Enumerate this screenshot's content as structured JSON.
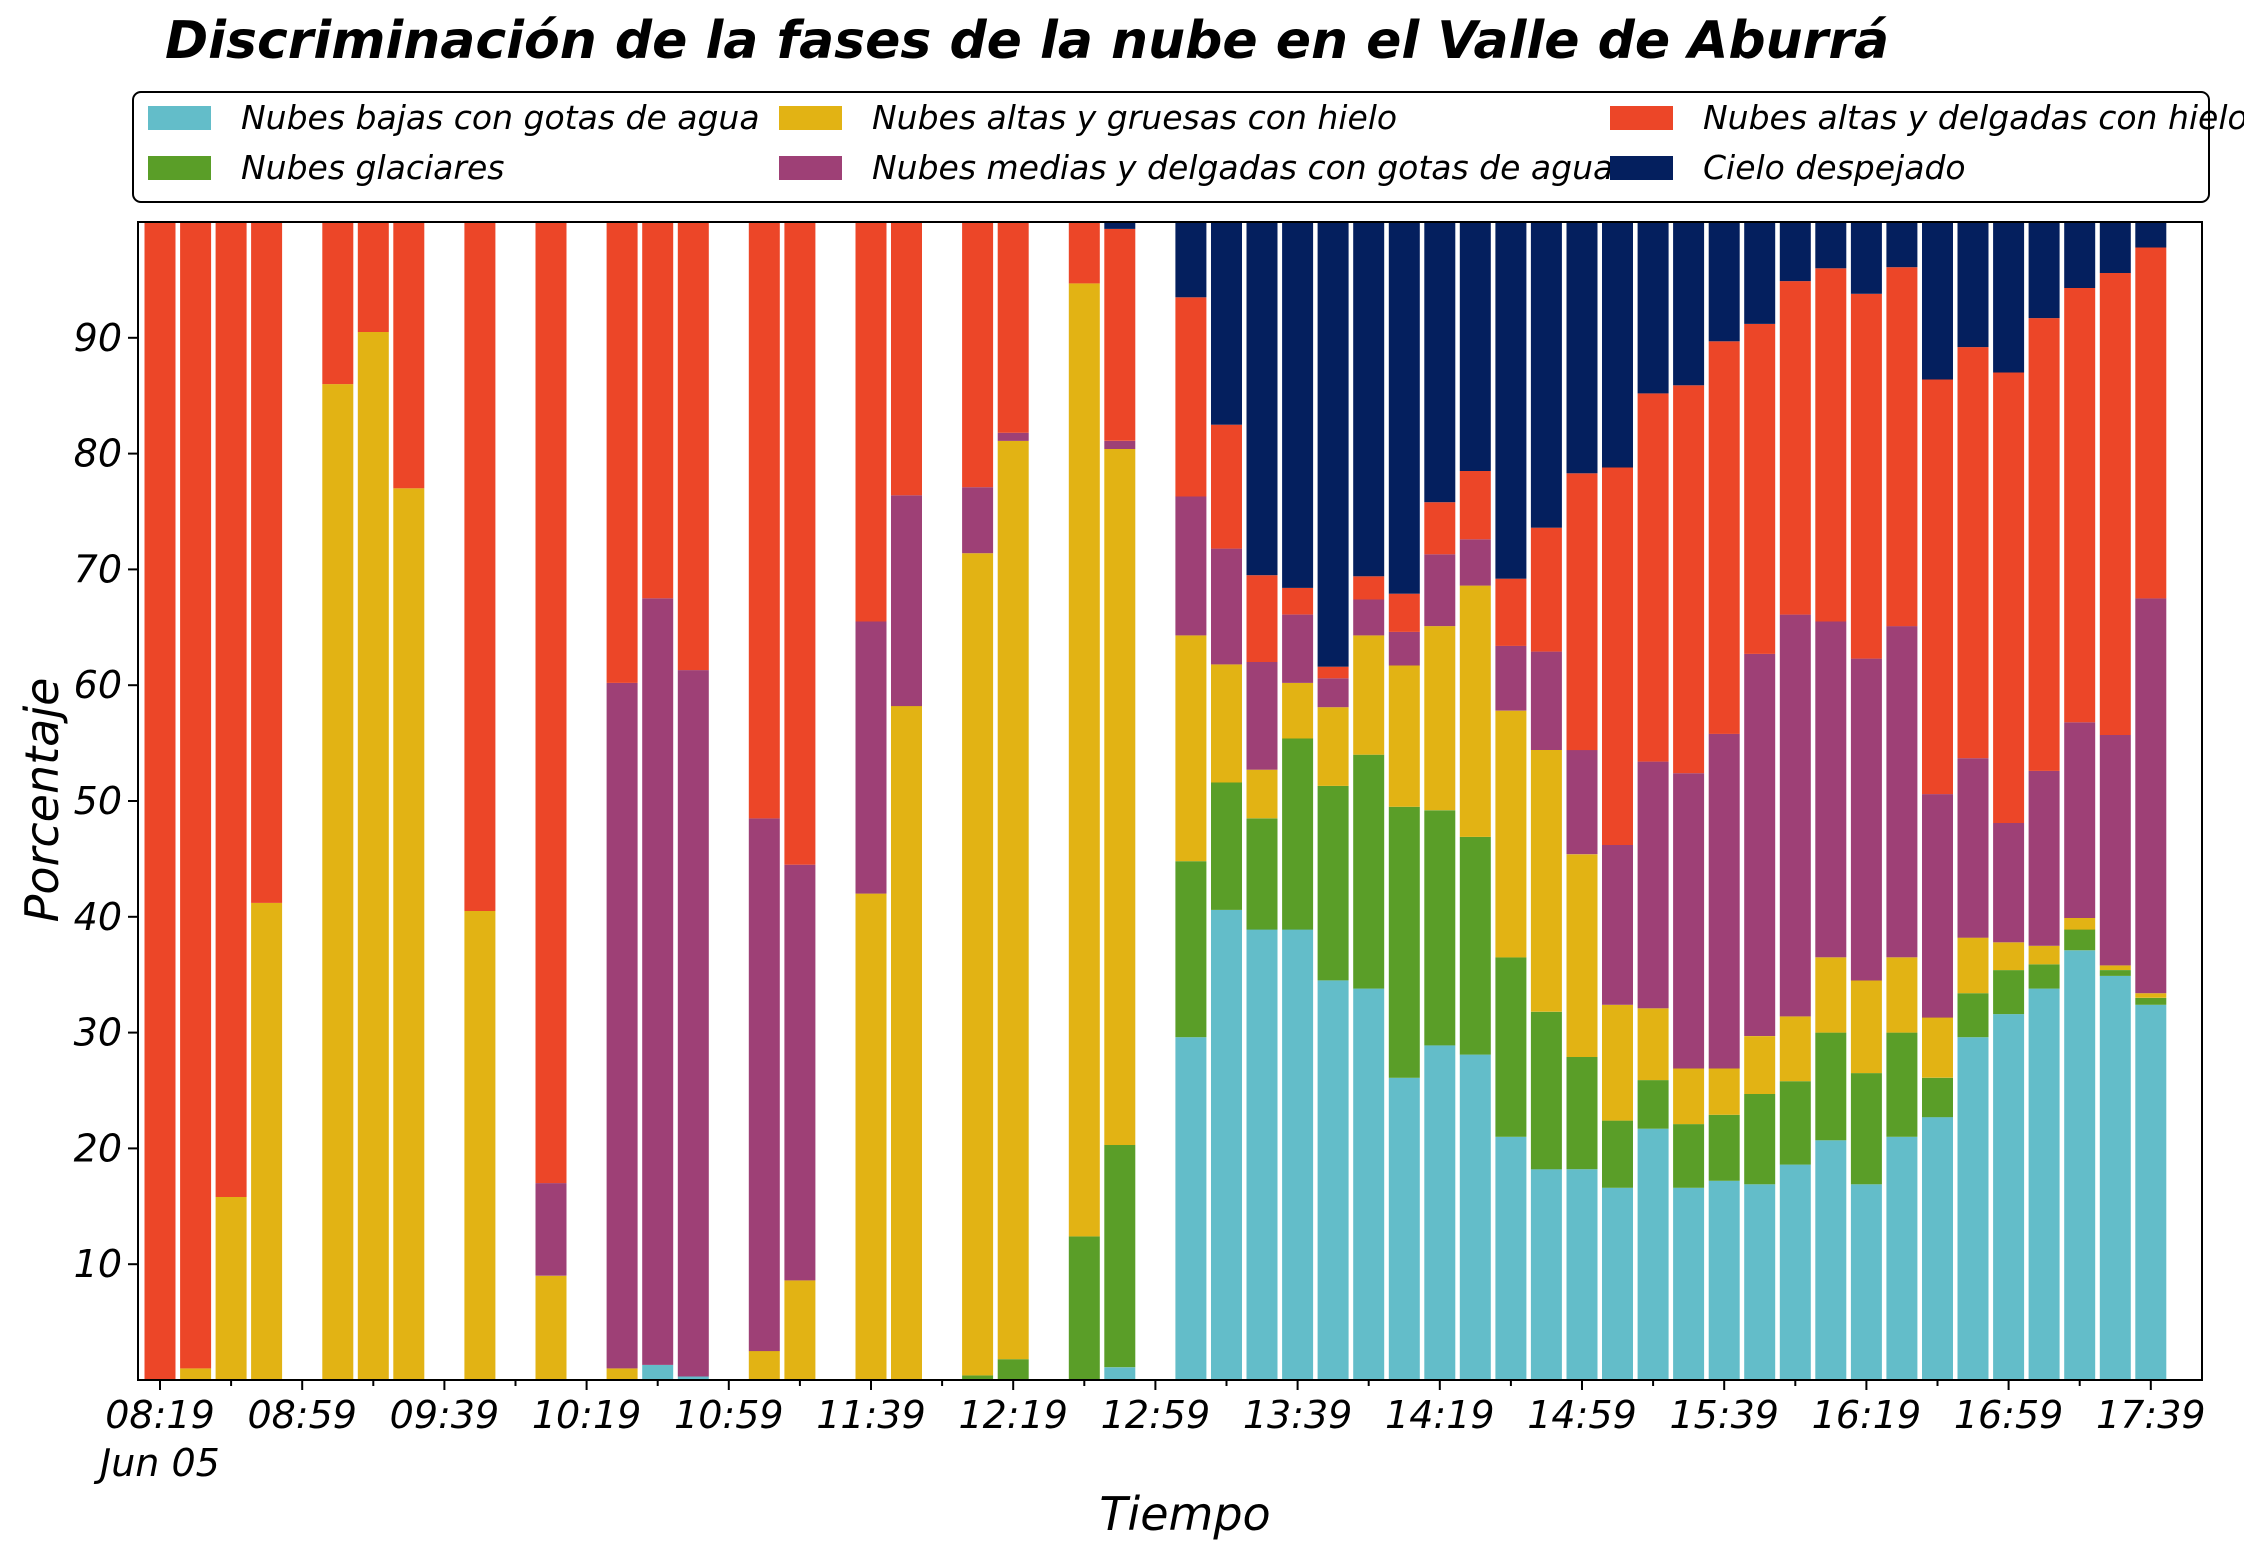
{
  "chart_data": {
    "type": "bar",
    "stacked": true,
    "title": "Discriminación de la fases de la nube en el Valle de Aburrá",
    "xlabel": "Tiempo",
    "ylabel": "Porcentaje",
    "ylim": [
      0,
      100
    ],
    "yticks": [
      10,
      20,
      30,
      40,
      50,
      60,
      70,
      80,
      90
    ],
    "xtick_labels": [
      "08:19",
      "08:59",
      "09:39",
      "10:19",
      "10:59",
      "11:39",
      "12:19",
      "12:59",
      "13:39",
      "14:19",
      "14:59",
      "15:39",
      "16:19",
      "16:59",
      "17:39"
    ],
    "xtick_slots": [
      0,
      4,
      8,
      12,
      16,
      20,
      24,
      28,
      32,
      36,
      40,
      44,
      48,
      52,
      56
    ],
    "date_label": "Jun 05",
    "grid": false,
    "legend_position": "top",
    "slot_count": 58,
    "series": [
      {
        "name": "Nubes bajas con gotas de agua",
        "color": "#63bdc9"
      },
      {
        "name": "Nubes glaciares",
        "color": "#5a9e28"
      },
      {
        "name": "Nubes altas y gruesas con hielo",
        "color": "#e2b314"
      },
      {
        "name": "Nubes medias y delgadas con gotas de agua",
        "color": "#9e4076"
      },
      {
        "name": "Nubes altas y delgadas con hielo",
        "color": "#ec4628"
      },
      {
        "name": "Cielo despejado",
        "color": "#041f5e"
      }
    ],
    "legend_order": [
      0,
      2,
      4,
      1,
      3,
      5
    ],
    "bars": [
      {
        "slot": 0,
        "values": [
          0,
          0,
          0,
          0,
          100,
          0
        ]
      },
      {
        "slot": 1,
        "values": [
          0,
          0,
          1,
          0,
          99,
          0
        ]
      },
      {
        "slot": 2,
        "values": [
          0,
          0,
          15.8,
          0,
          84.2,
          0
        ]
      },
      {
        "slot": 3,
        "values": [
          0,
          0,
          41.2,
          0,
          58.8,
          0
        ]
      },
      {
        "slot": 5,
        "values": [
          0,
          0,
          86,
          0,
          14,
          0
        ]
      },
      {
        "slot": 6,
        "values": [
          0,
          0,
          90.5,
          0,
          9.5,
          0
        ]
      },
      {
        "slot": 7,
        "values": [
          0,
          0,
          77,
          0,
          23,
          0
        ]
      },
      {
        "slot": 9,
        "values": [
          0,
          0,
          40.5,
          0,
          59.5,
          0
        ]
      },
      {
        "slot": 11,
        "values": [
          0,
          0,
          9,
          8,
          83,
          0
        ]
      },
      {
        "slot": 13,
        "values": [
          0,
          0,
          1,
          59.2,
          39.8,
          0
        ]
      },
      {
        "slot": 14,
        "values": [
          1.3,
          0,
          0,
          66.2,
          32.5,
          0
        ]
      },
      {
        "slot": 15,
        "values": [
          0.3,
          0,
          0,
          61,
          38.7,
          0
        ]
      },
      {
        "slot": 17,
        "values": [
          0,
          0,
          2.5,
          46,
          51.5,
          0
        ]
      },
      {
        "slot": 18,
        "values": [
          0,
          0,
          8.6,
          35.9,
          55.5,
          0
        ]
      },
      {
        "slot": 20,
        "values": [
          0,
          0,
          42,
          23.5,
          34.5,
          0
        ]
      },
      {
        "slot": 21,
        "values": [
          0,
          0,
          58.2,
          18.2,
          23.6,
          0
        ]
      },
      {
        "slot": 23,
        "values": [
          0,
          0.4,
          71,
          5.7,
          22.9,
          0
        ]
      },
      {
        "slot": 24,
        "values": [
          0,
          1.8,
          79.3,
          0.7,
          18.2,
          0
        ]
      },
      {
        "slot": 26,
        "values": [
          0,
          12.4,
          82.3,
          0,
          5.3,
          0
        ]
      },
      {
        "slot": 27,
        "values": [
          1.1,
          19.2,
          60.1,
          0.7,
          18.3,
          0.6
        ]
      },
      {
        "slot": 29,
        "values": [
          29.6,
          15.2,
          19.5,
          12,
          17.2,
          6.5
        ]
      },
      {
        "slot": 30,
        "values": [
          40.6,
          11,
          10.2,
          10,
          10.7,
          17.5
        ]
      },
      {
        "slot": 31,
        "values": [
          38.9,
          9.6,
          4.2,
          9.3,
          7.5,
          30.5
        ]
      },
      {
        "slot": 32,
        "values": [
          38.9,
          16.5,
          4.8,
          5.9,
          2.3,
          31.6
        ]
      },
      {
        "slot": 33,
        "values": [
          34.5,
          16.8,
          6.8,
          2.5,
          1,
          38.4
        ]
      },
      {
        "slot": 34,
        "values": [
          33.8,
          20.2,
          10.3,
          3.1,
          2,
          30.6
        ]
      },
      {
        "slot": 35,
        "values": [
          26.1,
          23.4,
          12.2,
          2.9,
          3.3,
          32.1
        ]
      },
      {
        "slot": 36,
        "values": [
          28.9,
          20.3,
          15.9,
          6.2,
          4.5,
          24.2
        ]
      },
      {
        "slot": 37,
        "values": [
          28.1,
          18.8,
          21.7,
          4,
          5.9,
          21.5
        ]
      },
      {
        "slot": 38,
        "values": [
          21,
          15.5,
          21.3,
          5.6,
          5.8,
          30.8
        ]
      },
      {
        "slot": 39,
        "values": [
          18.2,
          13.6,
          22.6,
          8.5,
          10.7,
          26.4
        ]
      },
      {
        "slot": 40,
        "values": [
          18.2,
          9.7,
          17.5,
          9,
          23.9,
          21.7
        ]
      },
      {
        "slot": 41,
        "values": [
          16.6,
          5.8,
          10,
          13.8,
          32.6,
          21.2
        ]
      },
      {
        "slot": 42,
        "values": [
          21.7,
          4.2,
          6.2,
          21.3,
          31.8,
          14.8
        ]
      },
      {
        "slot": 43,
        "values": [
          16.6,
          5.5,
          4.8,
          25.5,
          33.5,
          14.1
        ]
      },
      {
        "slot": 44,
        "values": [
          17.2,
          5.7,
          4,
          28.9,
          33.9,
          10.3
        ]
      },
      {
        "slot": 45,
        "values": [
          16.9,
          7.8,
          5,
          33,
          28.5,
          8.8
        ]
      },
      {
        "slot": 46,
        "values": [
          18.6,
          7.2,
          5.6,
          34.7,
          28.8,
          5.1
        ]
      },
      {
        "slot": 47,
        "values": [
          20.7,
          9.3,
          6.5,
          29,
          30.5,
          4
        ]
      },
      {
        "slot": 48,
        "values": [
          16.9,
          9.6,
          8,
          27.8,
          31.5,
          6.2
        ]
      },
      {
        "slot": 49,
        "values": [
          21,
          9,
          6.5,
          28.6,
          31,
          3.9
        ]
      },
      {
        "slot": 50,
        "values": [
          22.7,
          3.4,
          5.2,
          19.3,
          35.8,
          13.6
        ]
      },
      {
        "slot": 51,
        "values": [
          29.6,
          3.8,
          4.8,
          15.5,
          35.5,
          10.8
        ]
      },
      {
        "slot": 52,
        "values": [
          31.6,
          3.8,
          2.4,
          10.3,
          38.9,
          13
        ]
      },
      {
        "slot": 53,
        "values": [
          33.8,
          2.1,
          1.6,
          15.1,
          39.1,
          8.3
        ]
      },
      {
        "slot": 54,
        "values": [
          37.1,
          1.8,
          1,
          16.9,
          37.5,
          5.7
        ]
      },
      {
        "slot": 55,
        "values": [
          34.9,
          0.5,
          0.4,
          19.9,
          39.9,
          4.4
        ]
      },
      {
        "slot": 56,
        "values": [
          32.4,
          0.6,
          0.4,
          34.1,
          30.3,
          2.2
        ]
      }
    ]
  }
}
